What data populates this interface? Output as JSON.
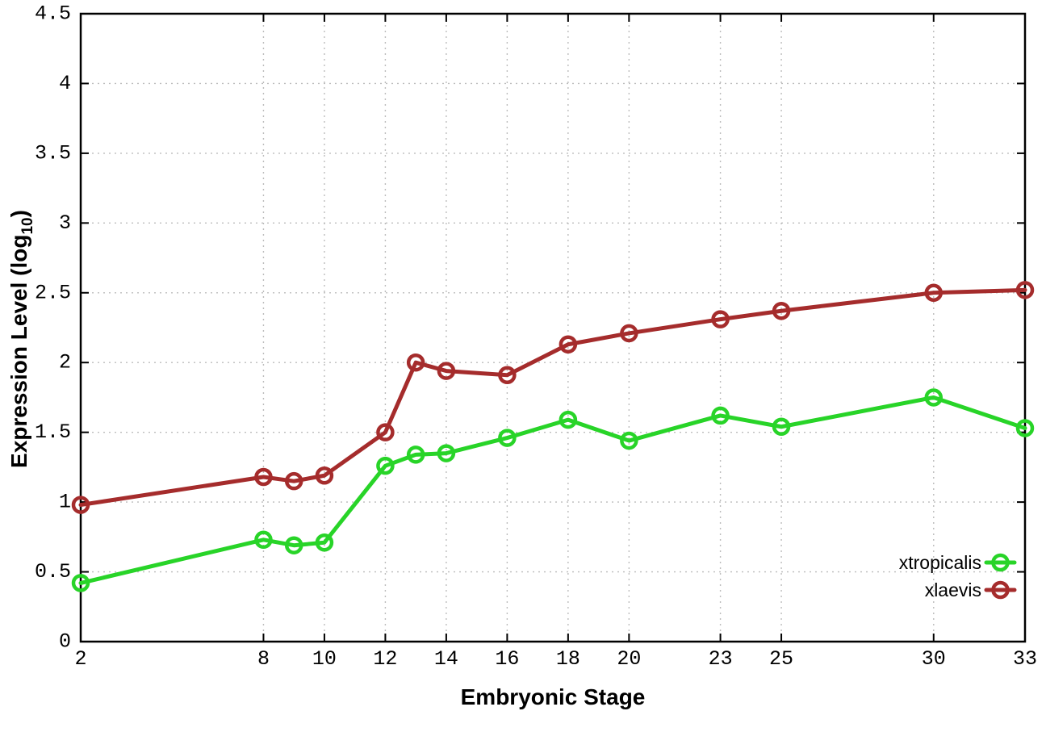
{
  "chart_data": {
    "type": "line",
    "title": "",
    "xlabel": "Embryonic Stage",
    "ylabel": "Expression Level (log10)",
    "ylabel_parts": {
      "pre": "Expression Level (log",
      "sub": "10",
      "post": ")"
    },
    "x": [
      2,
      8,
      9,
      10,
      12,
      13,
      14,
      16,
      18,
      20,
      23,
      25,
      30,
      33
    ],
    "x_tick_labels": [
      "2",
      "8",
      "10",
      "12",
      "14",
      "16",
      "18",
      "20",
      "23",
      "25",
      "30",
      "33"
    ],
    "x_tick_values": [
      2,
      8,
      10,
      12,
      14,
      16,
      18,
      20,
      23,
      25,
      30,
      33
    ],
    "y_ticks": [
      0,
      0.5,
      1,
      1.5,
      2,
      2.5,
      3,
      3.5,
      4,
      4.5
    ],
    "xlim": [
      2,
      33
    ],
    "ylim": [
      0,
      4.5
    ],
    "grid": true,
    "background_color": "#ffffff",
    "axis_color": "#000000",
    "grid_color": "#bcbcbc",
    "legend": {
      "position": "inside-bottom-right",
      "entries": [
        "xtropicalis",
        "xlaevis"
      ]
    },
    "series": [
      {
        "name": "xtropicalis",
        "color": "#28d428",
        "marker": "open-circle",
        "values": [
          0.42,
          0.73,
          0.69,
          0.71,
          1.26,
          1.34,
          1.35,
          1.46,
          1.59,
          1.44,
          1.62,
          1.54,
          1.75,
          1.53
        ]
      },
      {
        "name": "xlaevis",
        "color": "#a52c2c",
        "marker": "open-circle",
        "values": [
          0.98,
          1.18,
          1.15,
          1.19,
          1.5,
          2.0,
          1.94,
          1.91,
          2.13,
          2.21,
          2.31,
          2.37,
          2.5,
          2.52
        ]
      }
    ]
  }
}
